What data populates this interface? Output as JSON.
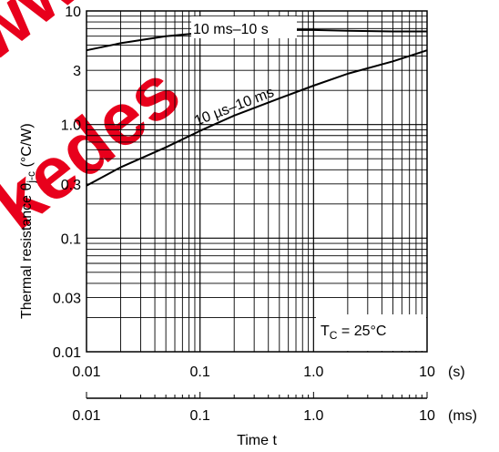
{
  "chart_data": {
    "type": "line",
    "x_scale": "log",
    "y_scale": "log",
    "xlim": [
      0.01,
      10
    ],
    "ylim": [
      0.01,
      10
    ],
    "x_unit": "(s)",
    "y_ticks": [
      "10",
      "3",
      "1.0",
      "0.3",
      "0.1",
      "0.03",
      "0.01"
    ],
    "y_tick_values": [
      10,
      3,
      1,
      0.3,
      0.1,
      0.03,
      0.01
    ],
    "x_ticks": [
      "0.01",
      "0.1",
      "1.0",
      "10"
    ],
    "x_tick_values": [
      0.01,
      0.1,
      1,
      10
    ],
    "x2_ticks": [
      "0.01",
      "0.1",
      "1.0",
      "10"
    ],
    "x2_tick_values": [
      0.01,
      0.1,
      1,
      10
    ],
    "x2_unit": "(ms)",
    "grid": true,
    "series": [
      {
        "name": "10 ms–10 s",
        "x": [
          0.01,
          0.02,
          0.05,
          0.1,
          0.2,
          0.5,
          1,
          2,
          5,
          10
        ],
        "y": [
          4.5,
          5.2,
          6.0,
          6.4,
          6.7,
          6.8,
          6.8,
          6.7,
          6.6,
          6.6
        ]
      },
      {
        "name": "10 µs–10 ms",
        "x": [
          0.01,
          0.02,
          0.05,
          0.1,
          0.2,
          0.5,
          1,
          2,
          5,
          10
        ],
        "y": [
          0.29,
          0.42,
          0.63,
          0.88,
          1.2,
          1.7,
          2.2,
          2.8,
          3.6,
          4.5
        ]
      }
    ],
    "annotation": "T_C = 25°C",
    "xlabel": "Time t",
    "ylabel": "Thermal resistance θj-c (°C/W)"
  },
  "labels": {
    "series1": "10 ms–10 s",
    "series2": "10 µs–10 ms",
    "annotation_t": "T",
    "annotation_sub": "C",
    "annotation_rest": " = 25°C",
    "xlabel": "Time t",
    "x_unit": "(s)",
    "x2_unit": "(ms)",
    "ylabel_main": "Thermal resistance θ",
    "ylabel_sub": "j-c",
    "ylabel_unit": " (°C/W)"
  },
  "watermark": {
    "line1": "www.",
    "line2": "kedes",
    "color": "#e8001c"
  }
}
